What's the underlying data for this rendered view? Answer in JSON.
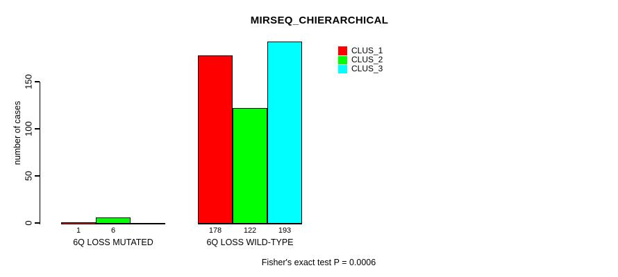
{
  "title": "MIRSEQ_CHIERARCHICAL",
  "annotation": "Fisher's exact test P = 0.0006",
  "y_axis": {
    "label": "number of cases",
    "tick_labels": [
      "0",
      "50",
      "100",
      "150"
    ]
  },
  "legend": {
    "entries": [
      {
        "label": "CLUS_1",
        "color": "#ff0000"
      },
      {
        "label": "CLUS_2",
        "color": "#00ff00"
      },
      {
        "label": "CLUS_3",
        "color": "#00ffff"
      }
    ]
  },
  "chart_data": {
    "type": "bar",
    "title": "MIRSEQ_CHIERARCHICAL",
    "xlabel": "",
    "ylabel": "number of cases",
    "categories": [
      "6Q LOSS MUTATED",
      "6Q LOSS WILD-TYPE"
    ],
    "series": [
      {
        "name": "CLUS_1",
        "color": "#ff0000",
        "values": [
          1,
          178
        ]
      },
      {
        "name": "CLUS_2",
        "color": "#00ff00",
        "values": [
          6,
          122
        ]
      },
      {
        "name": "CLUS_3",
        "color": "#00ffff",
        "values": [
          0,
          193
        ]
      }
    ],
    "bar_value_labels": [
      [
        "1",
        "6",
        ""
      ],
      [
        "178",
        "122",
        "193"
      ]
    ],
    "yticks": [
      0,
      50,
      100,
      150
    ],
    "ylim": [
      0,
      200
    ],
    "grid": false,
    "legend_position": "top-right",
    "bar_border_color": "#000000",
    "annotation": "Fisher's exact test P = 0.0006"
  }
}
